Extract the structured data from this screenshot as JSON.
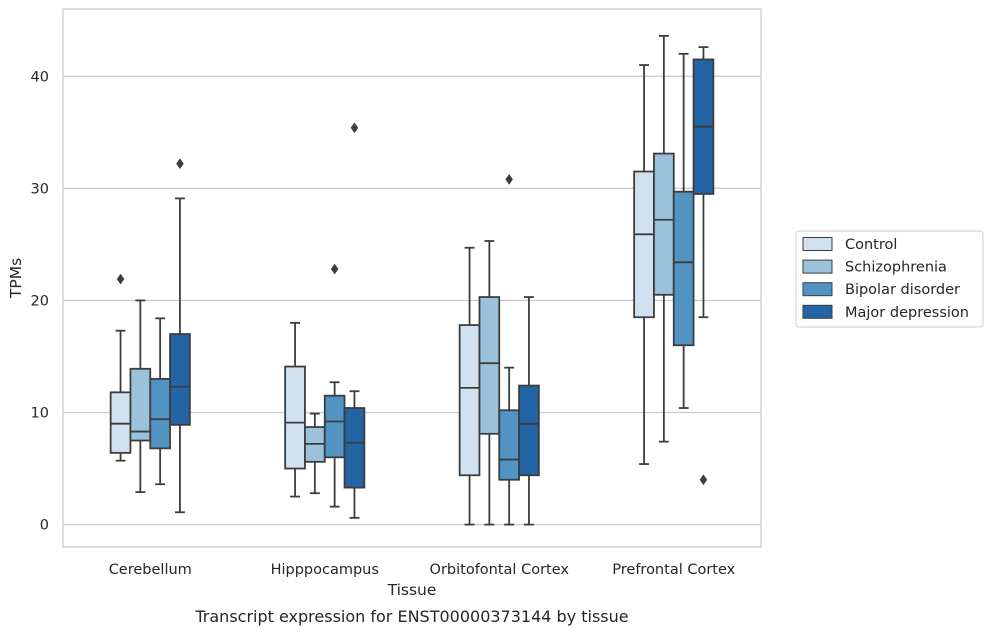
{
  "caption": "Transcript expression for ENST00000373144 by tissue",
  "chart_data": {
    "type": "box",
    "xlabel": "Tissue",
    "ylabel": "TPMs",
    "ylim": [
      -2,
      46
    ],
    "yticks": [
      0,
      10,
      20,
      30,
      40
    ],
    "grid": "horizontal",
    "legend_position": "outside-right",
    "categories": [
      "Cerebellum",
      "Hipppocampus",
      "Orbitofontal Cortex",
      "Prefrontal Cortex"
    ],
    "series": [
      {
        "name": "Control",
        "color": "#d1e1f0",
        "boxes": [
          {
            "whislo": 5.7,
            "q1": 6.4,
            "med": 9.0,
            "q3": 11.8,
            "whishi": 17.3,
            "fliers": [
              21.9
            ]
          },
          {
            "whislo": 2.5,
            "q1": 5.0,
            "med": 9.1,
            "q3": 14.1,
            "whishi": 18.0,
            "fliers": []
          },
          {
            "whislo": 0.0,
            "q1": 4.4,
            "med": 12.2,
            "q3": 17.8,
            "whishi": 24.7,
            "fliers": []
          },
          {
            "whislo": 5.4,
            "q1": 18.5,
            "med": 25.9,
            "q3": 31.5,
            "whishi": 41.0,
            "fliers": []
          }
        ]
      },
      {
        "name": "Schizophrenia",
        "color": "#9ac2db",
        "boxes": [
          {
            "whislo": 2.9,
            "q1": 7.5,
            "med": 8.3,
            "q3": 13.9,
            "whishi": 20.0,
            "fliers": []
          },
          {
            "whislo": 2.8,
            "q1": 5.6,
            "med": 7.2,
            "q3": 8.7,
            "whishi": 9.9,
            "fliers": []
          },
          {
            "whislo": 0.0,
            "q1": 8.1,
            "med": 14.4,
            "q3": 20.3,
            "whishi": 25.3,
            "fliers": []
          },
          {
            "whislo": 7.4,
            "q1": 20.5,
            "med": 27.2,
            "q3": 33.1,
            "whishi": 43.6,
            "fliers": []
          }
        ]
      },
      {
        "name": "Bipolar disorder",
        "color": "#5193c2",
        "boxes": [
          {
            "whislo": 3.6,
            "q1": 6.8,
            "med": 9.4,
            "q3": 13.0,
            "whishi": 18.4,
            "fliers": []
          },
          {
            "whislo": 1.6,
            "q1": 6.0,
            "med": 9.2,
            "q3": 11.5,
            "whishi": 12.7,
            "fliers": [
              22.8
            ]
          },
          {
            "whislo": 0.0,
            "q1": 4.0,
            "med": 5.8,
            "q3": 10.2,
            "whishi": 14.0,
            "fliers": [
              30.8
            ]
          },
          {
            "whislo": 10.4,
            "q1": 16.0,
            "med": 23.4,
            "q3": 29.7,
            "whishi": 42.0,
            "fliers": []
          }
        ]
      },
      {
        "name": "Major depression",
        "color": "#2364a4",
        "boxes": [
          {
            "whislo": 1.1,
            "q1": 8.9,
            "med": 12.3,
            "q3": 17.0,
            "whishi": 29.1,
            "fliers": [
              32.2
            ]
          },
          {
            "whislo": 0.6,
            "q1": 3.3,
            "med": 7.3,
            "q3": 10.4,
            "whishi": 11.9,
            "fliers": [
              35.4
            ]
          },
          {
            "whislo": 0.0,
            "q1": 4.4,
            "med": 9.0,
            "q3": 12.4,
            "whishi": 20.3,
            "fliers": []
          },
          {
            "whislo": 18.5,
            "q1": 29.5,
            "med": 35.5,
            "q3": 41.5,
            "whishi": 42.6,
            "fliers": [
              4.0
            ]
          }
        ]
      }
    ]
  }
}
